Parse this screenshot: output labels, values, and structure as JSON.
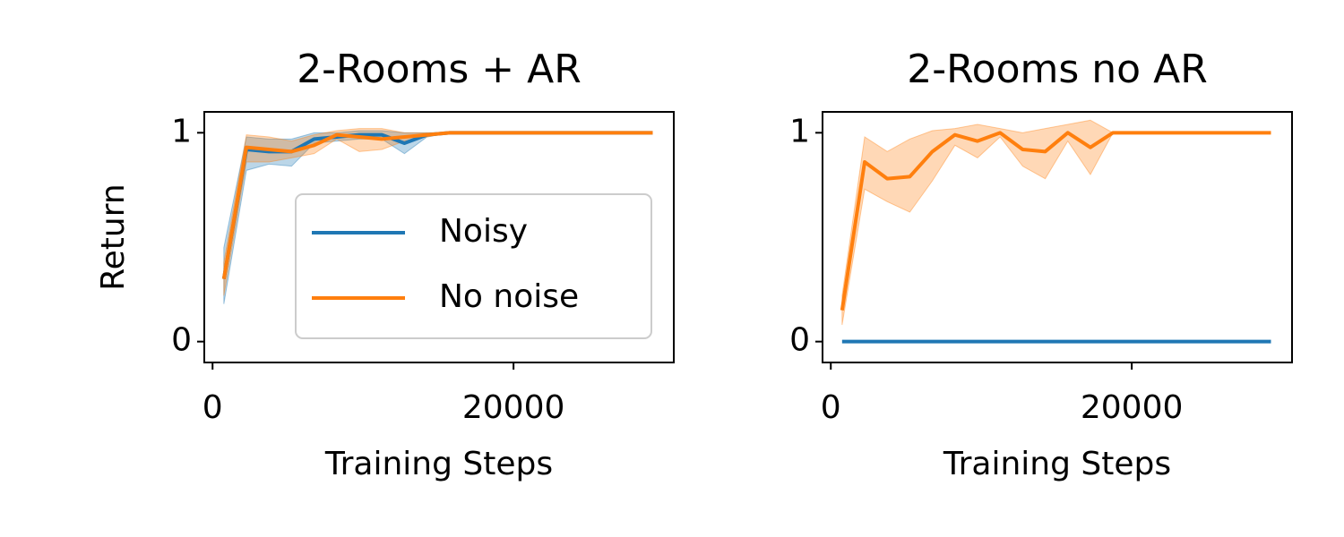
{
  "chart_data": [
    {
      "type": "line",
      "title": "2-Rooms + AR",
      "xlabel": "Training Steps",
      "ylabel": "Return",
      "x": [
        750,
        2250,
        3750,
        5250,
        6750,
        8250,
        9750,
        11250,
        12750,
        14250,
        15750,
        17250,
        18750,
        20250,
        21750,
        23250,
        24750,
        26250,
        27750,
        29250
      ],
      "series": [
        {
          "name": "Noisy",
          "color": "#1f77b4",
          "values": [
            0.3,
            0.92,
            0.91,
            0.91,
            0.97,
            0.98,
            0.99,
            0.99,
            0.95,
            0.99,
            1,
            1,
            1,
            1,
            1,
            1,
            1,
            1,
            1,
            1
          ],
          "lower": [
            0.18,
            0.82,
            0.85,
            0.84,
            0.95,
            0.96,
            0.97,
            0.97,
            0.9,
            0.98,
            1,
            1,
            1,
            1,
            1,
            1,
            1,
            1,
            1,
            1
          ],
          "upper": [
            0.45,
            0.98,
            0.97,
            0.97,
            1.0,
            1.0,
            1.01,
            1.01,
            1.0,
            1.0,
            1,
            1,
            1,
            1,
            1,
            1,
            1,
            1,
            1,
            1
          ]
        },
        {
          "name": "No noise",
          "color": "#ff7f0e",
          "values": [
            0.3,
            0.93,
            0.92,
            0.91,
            0.94,
            0.99,
            0.98,
            0.97,
            0.98,
            0.99,
            1,
            1,
            1,
            1,
            1,
            1,
            1,
            1,
            1,
            1
          ],
          "lower": [
            0.22,
            0.86,
            0.86,
            0.88,
            0.9,
            0.97,
            0.91,
            0.92,
            0.96,
            0.98,
            1,
            1,
            1,
            1,
            1,
            1,
            1,
            1,
            1,
            1
          ],
          "upper": [
            0.38,
            0.99,
            0.98,
            0.96,
            0.99,
            1.01,
            1.02,
            1.02,
            1.0,
            1.0,
            1,
            1,
            1,
            1,
            1,
            1,
            1,
            1,
            1,
            1
          ]
        }
      ],
      "xlim": [
        -550,
        30650
      ],
      "ylim": [
        -0.1,
        1.1
      ],
      "xticks": [
        0,
        20000
      ],
      "yticks": [
        0,
        1
      ],
      "legend": "lower right"
    },
    {
      "type": "line",
      "title": "2-Rooms no AR",
      "xlabel": "Training Steps",
      "x": [
        750,
        2250,
        3750,
        5250,
        6750,
        8250,
        9750,
        11250,
        12750,
        14250,
        15750,
        17250,
        18750,
        20250,
        21750,
        23250,
        24750,
        26250,
        27750,
        29250
      ],
      "series": [
        {
          "color": "#1f77b4",
          "values": [
            0,
            0,
            0,
            0,
            0,
            0,
            0,
            0,
            0,
            0,
            0,
            0,
            0,
            0,
            0,
            0,
            0,
            0,
            0,
            0
          ]
        },
        {
          "color": "#ff7f0e",
          "values": [
            0.15,
            0.86,
            0.78,
            0.79,
            0.91,
            0.99,
            0.96,
            1.0,
            0.92,
            0.91,
            1.0,
            0.93,
            1.0,
            1,
            1,
            1,
            1,
            1,
            1,
            1
          ],
          "lower": [
            0.08,
            0.73,
            0.67,
            0.62,
            0.77,
            0.94,
            0.88,
            0.98,
            0.84,
            0.78,
            0.96,
            0.8,
            1,
            1,
            1,
            1,
            1,
            1,
            1,
            1
          ],
          "upper": [
            0.22,
            0.98,
            0.91,
            0.97,
            1.01,
            1.02,
            1.04,
            1.02,
            1.0,
            1.02,
            1.04,
            1.06,
            1,
            1,
            1,
            1,
            1,
            1,
            1,
            1
          ]
        }
      ],
      "xlim": [
        -550,
        30650
      ],
      "ylim": [
        -0.1,
        1.1
      ],
      "xticks": [
        0,
        20000
      ],
      "yticks": [
        0,
        1
      ]
    }
  ]
}
